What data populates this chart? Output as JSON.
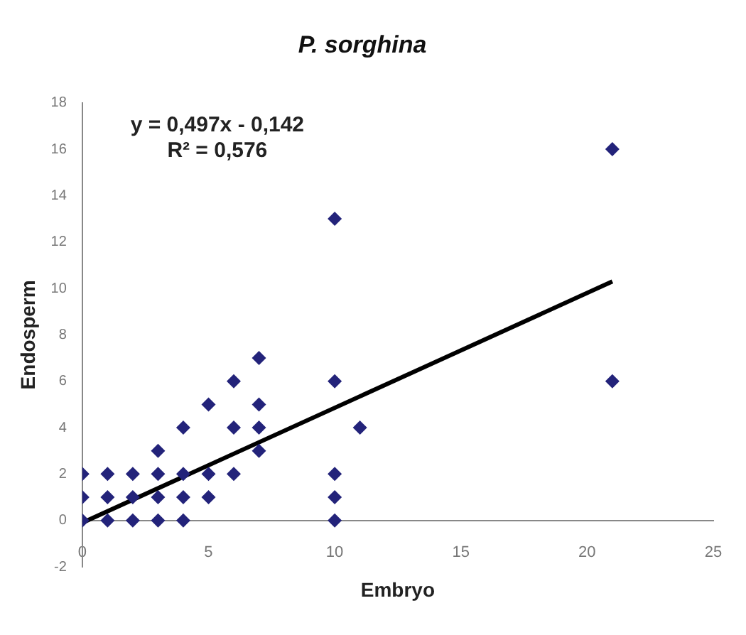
{
  "chart_data": {
    "type": "scatter",
    "title": "P. sorghina",
    "xlabel": "Embryo",
    "ylabel": "Endosperm",
    "xlim": [
      0,
      25
    ],
    "xticks": [
      0,
      5,
      10,
      15,
      20,
      25
    ],
    "ylim": [
      -2,
      18
    ],
    "yticks": [
      -2,
      0,
      2,
      4,
      6,
      8,
      10,
      12,
      14,
      16,
      18
    ],
    "grid": false,
    "legend": false,
    "marker": "diamond",
    "series": [
      {
        "color": "#23237a",
        "x": [
          0,
          0,
          0,
          1,
          1,
          1,
          2,
          2,
          2,
          3,
          3,
          3,
          3,
          4,
          4,
          4,
          4,
          5,
          5,
          5,
          6,
          6,
          6,
          7,
          7,
          7,
          7,
          10,
          10,
          10,
          10,
          10,
          11,
          21,
          21
        ],
        "values": [
          0,
          1,
          2,
          0,
          1,
          2,
          0,
          1,
          2,
          0,
          1,
          2,
          3,
          0,
          1,
          2,
          4,
          1,
          2,
          5,
          2,
          4,
          6,
          3,
          4,
          5,
          7,
          0,
          1,
          2,
          6,
          13,
          4,
          6,
          16
        ]
      },
      {
        "type": "line",
        "color": "#000000",
        "x": [
          0,
          21
        ],
        "values": [
          -0.1,
          10.3
        ],
        "marker": "none",
        "line_style": "solid"
      }
    ],
    "annotations": [
      "y = 0,497x - 0,142",
      "R² = 0,576"
    ]
  }
}
